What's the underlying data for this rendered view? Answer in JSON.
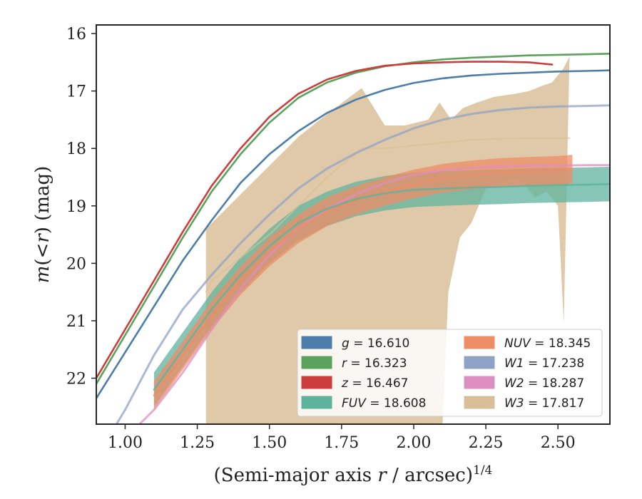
{
  "chart_data": {
    "type": "line",
    "xlabel": "(Semi-major axis r / arcsec)^1/4",
    "ylabel": "m(<r) (mag)",
    "xlim": [
      0.9,
      2.68
    ],
    "ylim": [
      22.8,
      15.85
    ],
    "y_inverted": true,
    "xticks": [
      "1.00",
      "1.25",
      "1.50",
      "1.75",
      "2.00",
      "2.25",
      "2.50"
    ],
    "xtick_values": [
      1.0,
      1.25,
      1.5,
      1.75,
      2.0,
      2.25,
      2.5
    ],
    "yticks": [
      "16",
      "17",
      "18",
      "19",
      "20",
      "21",
      "22"
    ],
    "ytick_values": [
      16,
      17,
      18,
      19,
      20,
      21,
      22
    ],
    "legend_position": "lower-right",
    "series": [
      {
        "name": "g = 16.610",
        "var": "g",
        "val": "16.610",
        "color": "#4c7ea9",
        "x": [
          0.9,
          1.0,
          1.1,
          1.2,
          1.3,
          1.4,
          1.5,
          1.6,
          1.7,
          1.8,
          1.9,
          2.0,
          2.1,
          2.2,
          2.3,
          2.4,
          2.5,
          2.6,
          2.68
        ],
        "y": [
          22.35,
          21.55,
          20.75,
          19.95,
          19.25,
          18.6,
          18.1,
          17.7,
          17.38,
          17.15,
          16.98,
          16.86,
          16.78,
          16.73,
          16.7,
          16.68,
          16.66,
          16.65,
          16.64
        ]
      },
      {
        "name": "r = 16.323",
        "var": "r",
        "val": "16.323",
        "color": "#5ba35c",
        "x": [
          0.9,
          1.0,
          1.1,
          1.2,
          1.3,
          1.4,
          1.5,
          1.6,
          1.7,
          1.8,
          1.9,
          2.0,
          2.1,
          2.2,
          2.3,
          2.4,
          2.5,
          2.6,
          2.68
        ],
        "y": [
          22.1,
          21.25,
          20.4,
          19.55,
          18.75,
          18.1,
          17.55,
          17.12,
          16.85,
          16.68,
          16.57,
          16.5,
          16.45,
          16.42,
          16.4,
          16.38,
          16.37,
          16.36,
          16.35
        ]
      },
      {
        "name": "z = 16.467",
        "var": "z",
        "val": "16.467",
        "color": "#cc3d3d",
        "x": [
          0.9,
          1.0,
          1.1,
          1.2,
          1.3,
          1.4,
          1.5,
          1.6,
          1.7,
          1.8,
          1.9,
          2.0,
          2.1,
          2.2,
          2.3,
          2.4,
          2.48
        ],
        "y": [
          22.0,
          21.15,
          20.3,
          19.45,
          18.65,
          18.0,
          17.45,
          17.05,
          16.8,
          16.65,
          16.56,
          16.52,
          16.5,
          16.49,
          16.49,
          16.5,
          16.54
        ]
      },
      {
        "name": "FUV = 18.608",
        "var": "FUV",
        "val": "18.608",
        "color": "#5fb39d",
        "x": [
          1.1,
          1.2,
          1.3,
          1.4,
          1.5,
          1.6,
          1.7,
          1.8,
          1.9,
          2.0,
          2.1,
          2.2,
          2.3,
          2.4,
          2.5,
          2.6,
          2.68
        ],
        "y": [
          22.2,
          21.5,
          20.8,
          20.2,
          19.7,
          19.3,
          19.05,
          18.88,
          18.78,
          18.72,
          18.7,
          18.68,
          18.67,
          18.65,
          18.64,
          18.63,
          18.62
        ],
        "band": 0.3
      },
      {
        "name": "NUV = 18.345",
        "var": "NUV",
        "val": "18.345",
        "color": "#ee8c66",
        "x": [
          1.1,
          1.2,
          1.3,
          1.4,
          1.5,
          1.6,
          1.7,
          1.8,
          1.9,
          2.0,
          2.1,
          2.2,
          2.3,
          2.4,
          2.5,
          2.55
        ],
        "y": [
          22.3,
          21.6,
          20.9,
          20.3,
          19.8,
          19.4,
          19.1,
          18.9,
          18.75,
          18.62,
          18.52,
          18.46,
          18.42,
          18.4,
          18.38,
          18.36
        ],
        "band": 0.25
      },
      {
        "name": "W1 = 17.238",
        "var": "W1",
        "val": "17.238",
        "color": "#8fa3c6",
        "x": [
          0.97,
          1.0,
          1.1,
          1.2,
          1.3,
          1.4,
          1.5,
          1.6,
          1.7,
          1.8,
          1.9,
          2.0,
          2.1,
          2.2,
          2.3,
          2.4,
          2.5,
          2.6,
          2.68
        ],
        "y": [
          22.8,
          22.55,
          21.6,
          20.8,
          20.2,
          19.65,
          19.15,
          18.7,
          18.35,
          18.08,
          17.85,
          17.65,
          17.5,
          17.4,
          17.33,
          17.29,
          17.27,
          17.26,
          17.25
        ]
      },
      {
        "name": "W2 = 18.287",
        "var": "W2",
        "val": "18.287",
        "color": "#dd8fc1",
        "x": [
          1.05,
          1.1,
          1.2,
          1.3,
          1.4,
          1.5,
          1.6,
          1.7,
          1.8,
          1.9,
          2.0,
          2.1,
          2.2,
          2.3,
          2.4,
          2.5,
          2.6,
          2.68
        ],
        "y": [
          22.8,
          22.55,
          21.9,
          21.15,
          20.45,
          19.85,
          19.4,
          19.05,
          18.8,
          18.6,
          18.46,
          18.38,
          18.34,
          18.31,
          18.3,
          18.3,
          18.29,
          18.29
        ]
      },
      {
        "name": "W3 = 17.817",
        "var": "W3",
        "val": "17.817",
        "color": "#d9bf99",
        "x": [
          1.28,
          1.3,
          1.4,
          1.5,
          1.6,
          1.7,
          1.82,
          1.9,
          2.0,
          2.1,
          2.2,
          2.3,
          2.4,
          2.5,
          2.54
        ],
        "y": [
          20.5,
          20.3,
          19.9,
          19.5,
          19.0,
          18.5,
          18.0,
          18.0,
          17.95,
          17.9,
          17.85,
          17.83,
          17.82,
          17.82,
          17.82
        ]
      }
    ]
  }
}
